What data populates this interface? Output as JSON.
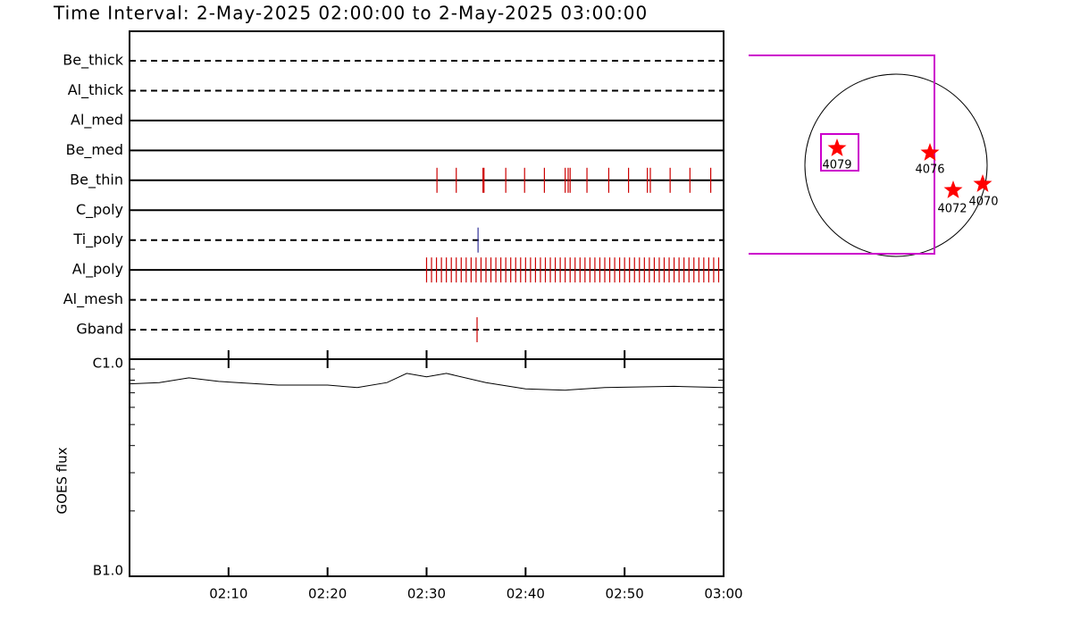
{
  "title": "Time Interval:  2-May-2025 02:00:00 to  2-May-2025 03:00:00",
  "chart_data": [
    {
      "type": "timeline",
      "xlim": [
        "02:00:00",
        "03:00:00"
      ],
      "series": [
        {
          "name": "Be_thick",
          "line_style": "dashed",
          "color": "#cc0000",
          "x": []
        },
        {
          "name": "Al_thick",
          "line_style": "dashed",
          "color": "#cc0000",
          "x": []
        },
        {
          "name": "Al_med",
          "line_style": "solid",
          "color": "#cc0000",
          "x": []
        },
        {
          "name": "Be_med",
          "line_style": "solid",
          "color": "#cc0000",
          "x": []
        },
        {
          "name": "Be_thin",
          "line_style": "solid",
          "color": "#cc0000",
          "x": [
            "02:31:03",
            "02:33:00",
            "02:35:42",
            "02:35:48",
            "02:38:00",
            "02:39:54",
            "02:41:54",
            "02:44:00",
            "02:44:18",
            "02:44:30",
            "02:46:12",
            "02:48:24",
            "02:50:24",
            "02:52:18",
            "02:52:36",
            "02:54:36",
            "02:56:36",
            "02:58:42"
          ]
        },
        {
          "name": "C_poly",
          "line_style": "solid",
          "color": "#cc0000",
          "x": []
        },
        {
          "name": "Ti_poly",
          "line_style": "dashed",
          "color": "#333399",
          "x": [
            "02:35:12"
          ]
        },
        {
          "name": "Al_poly",
          "line_style": "solid",
          "color": "#cc0000",
          "x": [
            "02:30:00",
            "02:30:30",
            "02:31:00",
            "02:31:30",
            "02:32:00",
            "02:32:30",
            "02:33:00",
            "02:33:30",
            "02:34:00",
            "02:34:30",
            "02:35:00",
            "02:35:30",
            "02:36:00",
            "02:36:30",
            "02:37:00",
            "02:37:30",
            "02:38:00",
            "02:38:30",
            "02:39:00",
            "02:39:30",
            "02:40:00",
            "02:40:30",
            "02:41:00",
            "02:41:30",
            "02:42:00",
            "02:42:30",
            "02:43:00",
            "02:43:30",
            "02:44:00",
            "02:44:30",
            "02:45:00",
            "02:45:30",
            "02:46:00",
            "02:46:30",
            "02:47:00",
            "02:47:30",
            "02:48:00",
            "02:48:30",
            "02:49:00",
            "02:49:30",
            "02:50:00",
            "02:50:30",
            "02:51:00",
            "02:51:30",
            "02:52:00",
            "02:52:30",
            "02:53:00",
            "02:53:30",
            "02:54:00",
            "02:54:30",
            "02:55:00",
            "02:55:30",
            "02:56:00",
            "02:56:30",
            "02:57:00",
            "02:57:30",
            "02:58:00",
            "02:58:30",
            "02:59:00",
            "02:59:30"
          ]
        },
        {
          "name": "Al_mesh",
          "line_style": "dashed",
          "color": "#cc0000",
          "x": []
        },
        {
          "name": "Gband",
          "line_style": "dashed",
          "color": "#cc0000",
          "x": [
            "02:35:06"
          ]
        }
      ]
    },
    {
      "type": "line",
      "y_label": "GOES flux",
      "log_scale": true,
      "color": "#000000",
      "x": [
        "02:00:00",
        "02:03:00",
        "02:06:00",
        "02:09:00",
        "02:15:00",
        "02:20:00",
        "02:23:00",
        "02:26:00",
        "02:28:00",
        "02:30:00",
        "02:32:00",
        "02:36:00",
        "02:40:00",
        "02:44:00",
        "02:48:00",
        "02:55:00",
        "03:00:00"
      ],
      "values": [
        7.7e-07,
        7.8e-07,
        8.2e-07,
        7.9e-07,
        7.6e-07,
        7.6e-07,
        7.4e-07,
        7.8e-07,
        8.6e-07,
        8.3e-07,
        8.6e-07,
        7.8e-07,
        7.3e-07,
        7.2e-07,
        7.4e-07,
        7.5e-07,
        7.4e-07
      ],
      "xlim": [
        "02:00:00",
        "03:00:00"
      ],
      "xticks": [
        "02:10",
        "02:20",
        "02:30",
        "02:40",
        "02:50",
        "03:00"
      ],
      "ylim": [
        1e-07,
        1e-06
      ],
      "yticks": [
        {
          "value": 1e-06,
          "label": "C1.0"
        },
        {
          "value": 1e-07,
          "label": "B1.0"
        }
      ],
      "minor_yticks": [
        2e-07,
        3e-07,
        4e-07,
        5e-07,
        6e-07,
        7e-07,
        8e-07,
        9e-07
      ]
    }
  ],
  "map": {
    "regions": [
      "4079",
      "4076",
      "4072",
      "4070"
    ]
  }
}
